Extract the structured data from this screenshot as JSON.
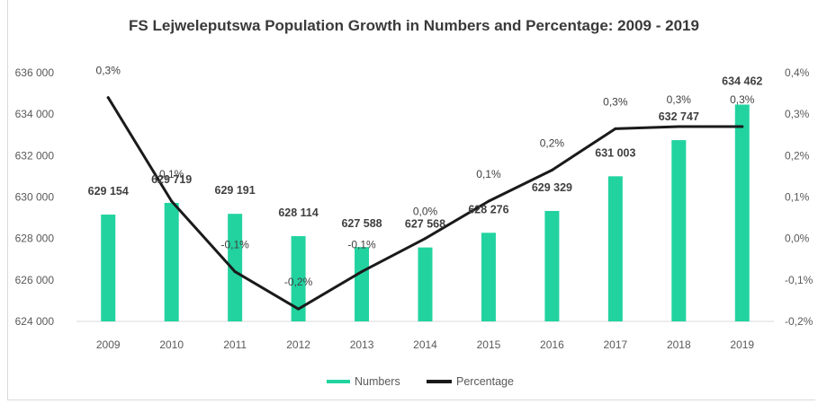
{
  "chart_data": {
    "type": "bar+line",
    "title": "FS Lejweleputswa Population Growth in  Numbers and Percentage: 2009 - 2019",
    "categories": [
      "2009",
      "2010",
      "2011",
      "2012",
      "2013",
      "2014",
      "2015",
      "2016",
      "2017",
      "2018",
      "2019"
    ],
    "series": [
      {
        "name": "Numbers",
        "type": "bar",
        "axis": "left",
        "color": "#22d3a0",
        "values": [
          629154,
          629719,
          629191,
          628114,
          627588,
          627568,
          628276,
          629329,
          631003,
          632747,
          634462
        ],
        "labels": [
          "629 154",
          "629 719",
          "629 191",
          "628 114",
          "627 588",
          "627 568",
          "628 276",
          "629 329",
          "631 003",
          "632 747",
          "634 462"
        ]
      },
      {
        "name": "Percentage",
        "type": "line",
        "axis": "right",
        "color": "#1a1a1a",
        "values": [
          0.34,
          0.09,
          -0.08,
          -0.17,
          -0.08,
          0.0,
          0.09,
          0.165,
          0.265,
          0.27,
          0.27
        ],
        "labels": [
          "0,3%",
          "0,1%",
          "-0,1%",
          "-0,2%",
          "-0,1%",
          "0,0%",
          "0,1%",
          "0,2%",
          "0,3%",
          "0,3%",
          "0,3%"
        ]
      }
    ],
    "y_left": {
      "range": [
        624000,
        636000
      ],
      "ticks": [
        624000,
        626000,
        628000,
        630000,
        632000,
        634000,
        636000
      ],
      "tick_labels": [
        "624 000",
        "626 000",
        "628 000",
        "630 000",
        "632 000",
        "634 000",
        "636 000"
      ]
    },
    "y_right": {
      "range": [
        -0.2,
        0.4
      ],
      "ticks": [
        -0.2,
        -0.1,
        0.0,
        0.1,
        0.2,
        0.3,
        0.4
      ],
      "tick_labels": [
        "-0,2%",
        "-0,1%",
        "0,0%",
        "0,1%",
        "0,2%",
        "0,3%",
        "0,4%"
      ]
    },
    "grid": false,
    "legend": "bottom-center"
  }
}
